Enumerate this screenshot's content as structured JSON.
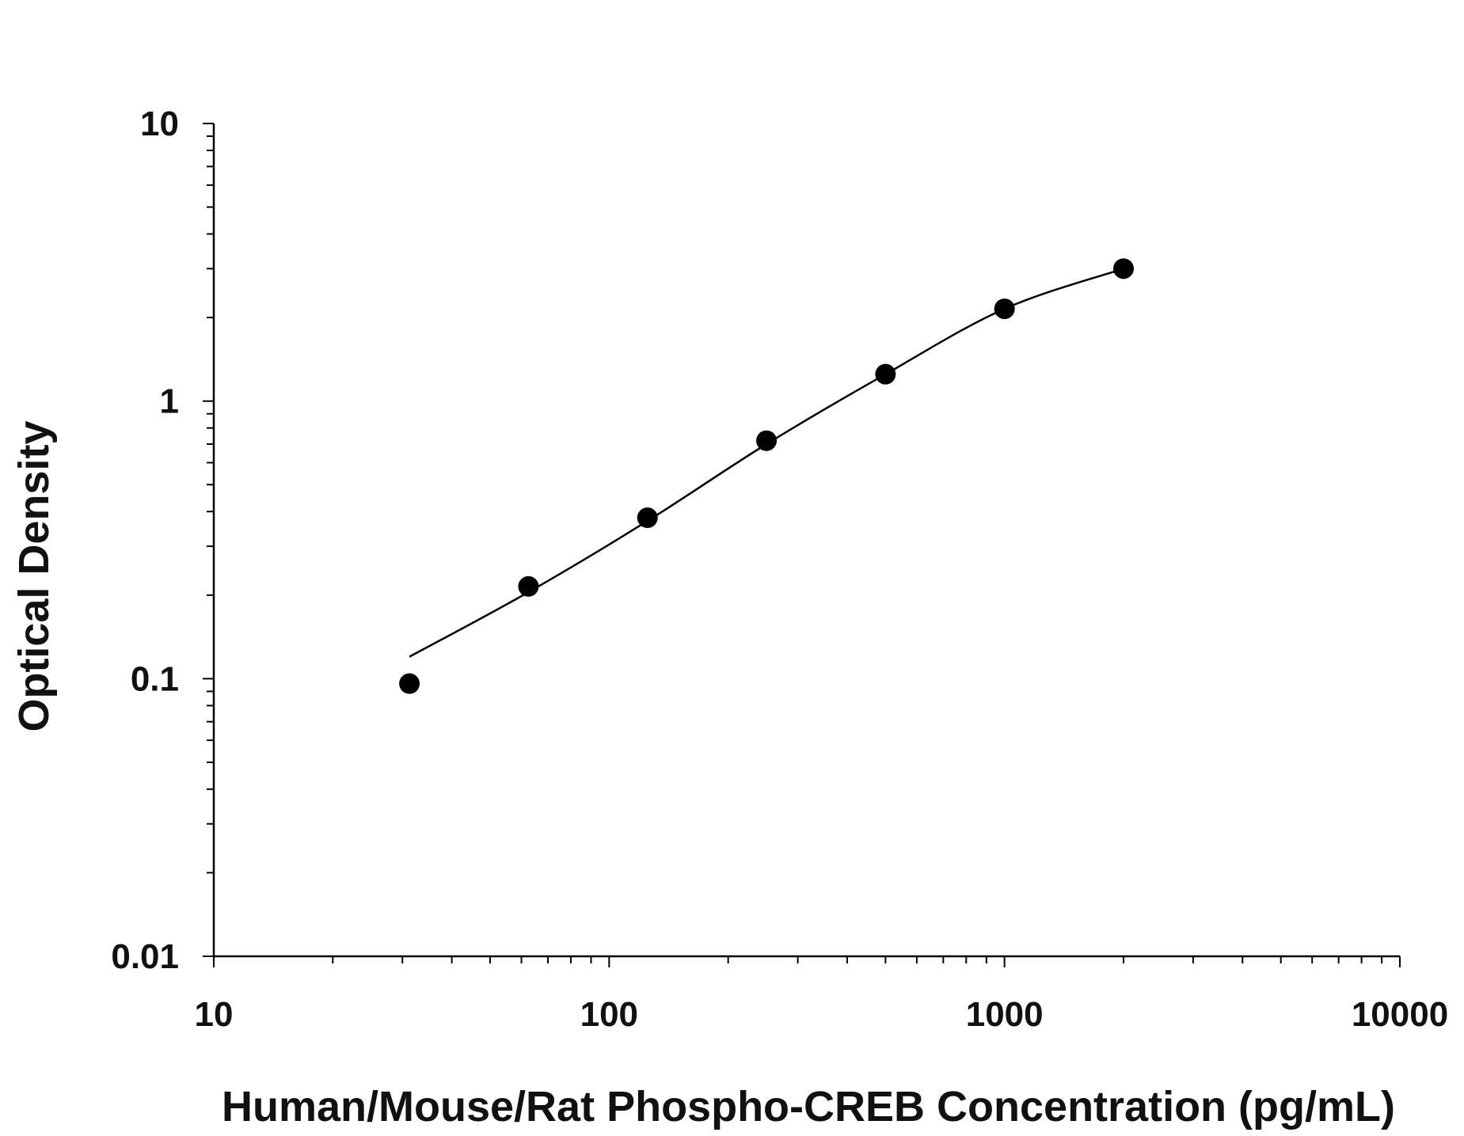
{
  "chart_data": {
    "type": "scatter",
    "title": "",
    "xlabel": "Human/Mouse/Rat Phospho-CREB Concentration (pg/mL)",
    "ylabel": "Optical Density",
    "x_scale": "log",
    "y_scale": "log",
    "xlim": [
      10,
      10000
    ],
    "ylim": [
      0.01,
      10
    ],
    "x_tick_labels": [
      "10",
      "100",
      "1000",
      "10000"
    ],
    "y_tick_labels": [
      "0.01",
      "0.1",
      "1",
      "10"
    ],
    "grid": false,
    "legend": "none",
    "series": [
      {
        "kind": "points",
        "x": [
          31.25,
          62.5,
          125,
          250,
          500,
          1000,
          2000
        ],
        "y": [
          0.096,
          0.215,
          0.38,
          0.72,
          1.25,
          2.15,
          3.0
        ]
      },
      {
        "kind": "fitted-curve",
        "x": [
          31.25,
          62.5,
          125,
          250,
          500,
          1000,
          2000
        ],
        "y": [
          0.12,
          0.205,
          0.37,
          0.7,
          1.25,
          2.15,
          3.0
        ]
      }
    ],
    "colors": {
      "points": "#000000",
      "curve": "#000000",
      "axes": "#000000",
      "text": "#111111"
    }
  }
}
